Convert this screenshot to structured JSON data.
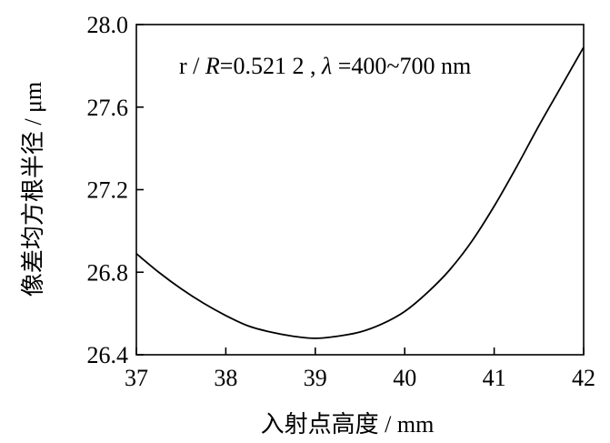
{
  "chart_data": {
    "type": "line",
    "xlabel": "入射点高度 / mm",
    "ylabel": "像差均方根半径 / μm",
    "xlim": [
      37,
      42
    ],
    "ylim": [
      26.4,
      28.0
    ],
    "x_ticks": [
      "37",
      "38",
      "39",
      "40",
      "41",
      "42"
    ],
    "y_ticks": [
      "26.4",
      "26.8",
      "27.2",
      "27.6",
      "28.0"
    ],
    "annotation": {
      "r_text": "r / ",
      "R_text": "R",
      "value_text": "=0.521 2 , ",
      "lambda_text": "λ",
      "range_text": " =400~700 nm"
    },
    "grid": false,
    "series": [
      {
        "color": "#000000",
        "x": [
          37.0,
          37.25,
          37.5,
          37.75,
          38.0,
          38.25,
          38.5,
          38.75,
          39.0,
          39.25,
          39.5,
          39.75,
          40.0,
          40.25,
          40.5,
          40.75,
          41.0,
          41.25,
          41.5,
          41.75,
          42.0
        ],
        "y": [
          26.89,
          26.8,
          26.72,
          26.65,
          26.59,
          26.54,
          26.51,
          26.49,
          26.48,
          26.49,
          26.51,
          26.55,
          26.61,
          26.7,
          26.81,
          26.95,
          27.12,
          27.31,
          27.51,
          27.7,
          27.89
        ]
      }
    ]
  }
}
